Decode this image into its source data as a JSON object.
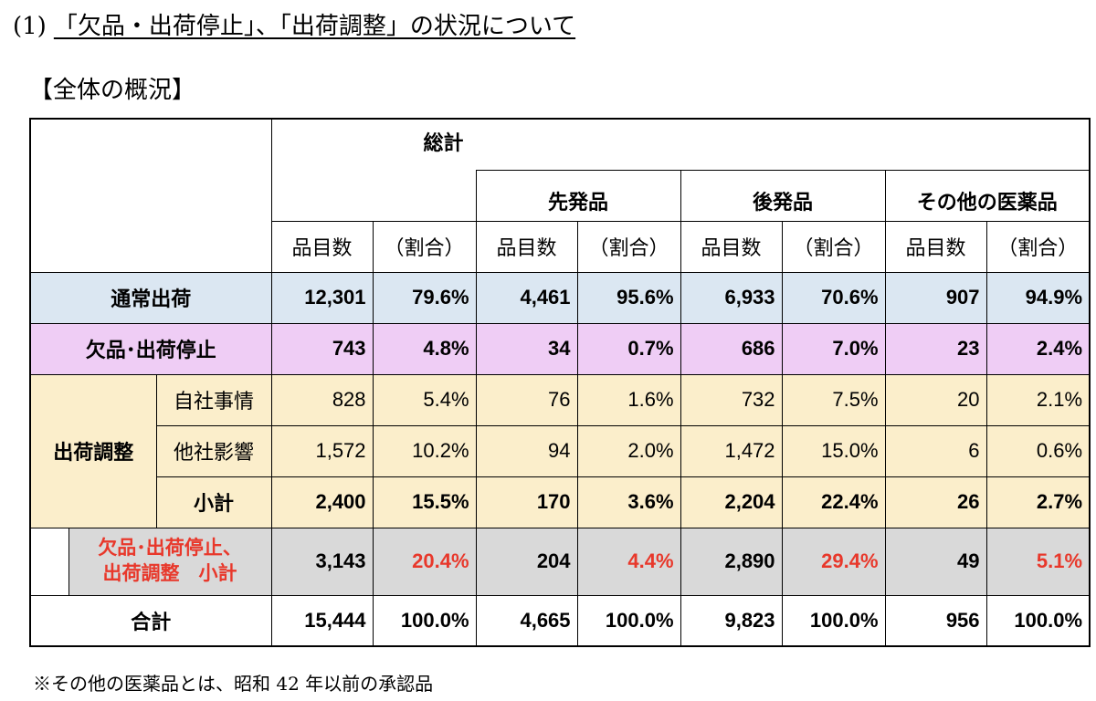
{
  "heading": {
    "number": "(1)",
    "title": "「欠品・出荷停止」、「出荷調整」の状況について"
  },
  "subheading": "【全体の概況】",
  "table": {
    "group_total": "総計",
    "groups": [
      "先発品",
      "後発品",
      "その他の医薬品"
    ],
    "col_count": "品目数",
    "col_ratio": "（割合）",
    "rows": {
      "normal": {
        "label": "通常出荷",
        "values": [
          "12,301",
          "79.6%",
          "4,461",
          "95.6%",
          "6,933",
          "70.6%",
          "907",
          "94.9%"
        ]
      },
      "ketsu": {
        "label": "欠品･出荷停止",
        "values": [
          "743",
          "4.8%",
          "34",
          "0.7%",
          "686",
          "7.0%",
          "23",
          "2.4%"
        ]
      },
      "adjust": {
        "label": "出荷調整",
        "sub_rows": [
          {
            "label": "自社事情",
            "values": [
              "828",
              "5.4%",
              "76",
              "1.6%",
              "732",
              "7.5%",
              "20",
              "2.1%"
            ]
          },
          {
            "label": "他社影響",
            "values": [
              "1,572",
              "10.2%",
              "94",
              "2.0%",
              "1,472",
              "15.0%",
              "6",
              "0.6%"
            ]
          },
          {
            "label": "小計",
            "values": [
              "2,400",
              "15.5%",
              "170",
              "3.6%",
              "2,204",
              "22.4%",
              "26",
              "2.7%"
            ]
          }
        ]
      },
      "combo": {
        "label_line1": "欠品･出荷停止、",
        "label_line2": "出荷調整　小計",
        "values": [
          "3,143",
          "20.4%",
          "204",
          "4.4%",
          "2,890",
          "29.4%",
          "49",
          "5.1%"
        ]
      },
      "total": {
        "label": "合計",
        "values": [
          "15,444",
          "100.0%",
          "4,665",
          "100.0%",
          "9,823",
          "100.0%",
          "956",
          "100.0%"
        ]
      }
    }
  },
  "footnote": "※その他の医薬品とは、昭和 42 年以前の承認品",
  "colors": {
    "normal_row": "#dbe7f2",
    "ketsu_row": "#efcdf5",
    "adjust_row": "#fbeecb",
    "combo_row": "#d9d9d9",
    "highlight_red": "#e8382b"
  }
}
